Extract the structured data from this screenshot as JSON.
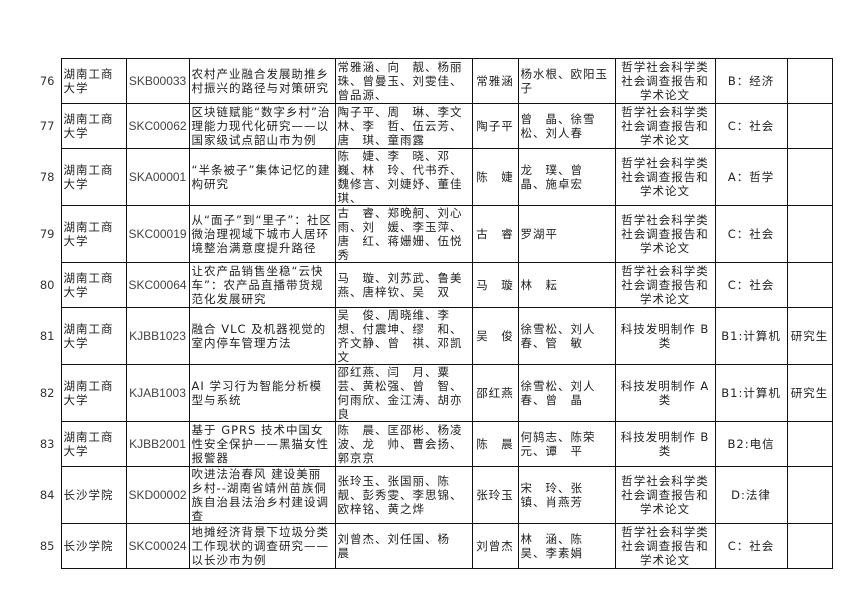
{
  "rows": [
    {
      "no": "76",
      "school": "湖南工商大学",
      "code": "SKB00033",
      "title": "农村产业融合发展助推乡村振兴的路径与对策研究",
      "members": "常雅涵、向　靓、杨丽珠、曾曼玉、刘雯佳、曾品源、",
      "leader": "常雅涵",
      "advisor": "杨水根、欧阳玉子",
      "category": "哲学社会科学类社会调查报告和学术论文",
      "subject": "B：经济",
      "level": ""
    },
    {
      "no": "77",
      "school": "湖南工商大学",
      "code": "SKC00062",
      "title": "区块链赋能“数字乡村”治理能力现代化研究——以国家级试点韶山市为例",
      "members": "陶子平、周　琳、李文林、李　哲、伍云芳、唐　琪、童雨露",
      "leader": "陶子平",
      "advisor": "曾　晶、徐雪松、刘人春",
      "category": "哲学社会科学类社会调查报告和学术论文",
      "subject": "C：社会",
      "level": ""
    },
    {
      "no": "78",
      "school": "湖南工商大学",
      "code": "SKA00001",
      "title": "“半条被子”集体记忆的建构研究",
      "members": "陈　婕、李　晓、邓　巍、林　玲、代书乔、魏修言、刘婕妤、董佳琪、",
      "leader": "陈　婕",
      "advisor": "龙　璞、曾　晶、施卓宏",
      "category": "哲学社会科学类社会调查报告和学术论文",
      "subject": "A：哲学",
      "level": ""
    },
    {
      "no": "79",
      "school": "湖南工商大学",
      "code": "SKC00019",
      "title": "从“面子”到“里子”：社区微治理视域下城市人居环境整治满意度提升路径",
      "members": "古　睿、郑晚舸、刘心雨、刘　媛、李玉萍、唐　红、蒋姗姗、伍悦秀",
      "leader": "古　睿",
      "advisor": "罗湖平",
      "category": "哲学社会科学类社会调查报告和学术论文",
      "subject": "C：社会",
      "level": ""
    },
    {
      "no": "80",
      "school": "湖南工商大学",
      "code": "SKC00064",
      "title": "让农产品销售坐稳“云快车”：农产品直播带货规范化发展研究",
      "members": "马　璇、刘苏武、鲁美燕、唐梓钦、吴　双",
      "leader": "马　璇",
      "advisor": "林　耘",
      "category": "哲学社会科学类社会调查报告和学术论文",
      "subject": "C：社会",
      "level": ""
    },
    {
      "no": "81",
      "school": "湖南工商大学",
      "code": "KJBB1023",
      "title": "融合 VLC 及机器视觉的室内停车管理方法",
      "members": "吴　俊、周晓维、李　想、付震坤、缪　和、齐文静、曾　祺、邓凯文",
      "leader": "吴　俊",
      "advisor": "徐雪松、刘人春、管　敏",
      "category": "科技发明制作 B 类",
      "subject": "B1:计算机",
      "level": "研究生"
    },
    {
      "no": "82",
      "school": "湖南工商大学",
      "code": "KJAB1003",
      "title": "AI 学习行为智能分析模型与系统",
      "members": "邵红燕、闫　月、粟　芸、黄松强、曾　智、何雨欣、金江涛、胡亦良",
      "leader": "邵红燕",
      "advisor": "徐雪松、刘人春、曾　晶",
      "category": "科技发明制作 A 类",
      "subject": "B1:计算机",
      "level": "研究生"
    },
    {
      "no": "83",
      "school": "湖南工商大学",
      "code": "KJBB2001",
      "title": "基于 GPRS 技术中国女性安全保护——黑猫女性报警器",
      "members": "陈　晨、匡邵彬、杨凌波、龙　帅、曹会扬、郭京京",
      "leader": "陈　晨",
      "advisor": "何鸫志、陈荣元、谭　平",
      "category": "科技发明制作 B 类",
      "subject": "B2:电信",
      "level": ""
    },
    {
      "no": "84",
      "school": "长沙学院",
      "code": "SKD00002",
      "title": "吹进法治春风 建设美丽乡村--湖南省靖州苗族侗族自治县法治乡村建设调查",
      "members": "张玲玉、张国丽、陈　靓、彭秀雯、李思锦、欧梓铭、黄之烨",
      "leader": "张玲玉",
      "advisor": "宋　玲、张　镇、肖燕芳",
      "category": "哲学社会科学类社会调查报告和学术论文",
      "subject": "D:法律",
      "level": ""
    },
    {
      "no": "85",
      "school": "长沙学院",
      "code": "SKC00024",
      "title": "地摊经济背景下垃圾分类工作现状的调查研究——以长沙市为例",
      "members": "刘曾杰、刘任国、杨　晨",
      "leader": "刘曾杰",
      "advisor": "林　涵、陈　昊、李素娟",
      "category": "哲学社会科学类社会调查报告和学术论文",
      "subject": "C：社会",
      "level": ""
    }
  ]
}
